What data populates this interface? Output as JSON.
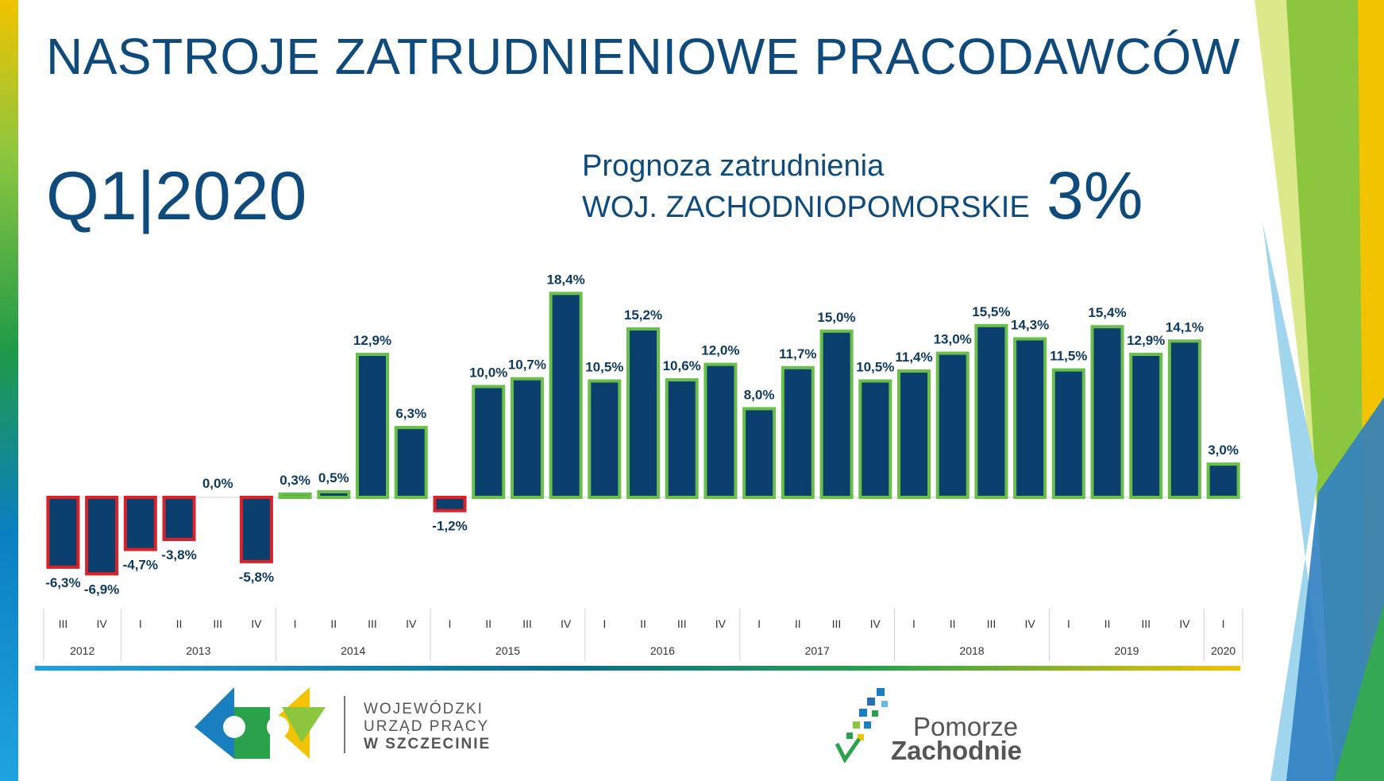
{
  "title": "NASTROJE ZATRUDNIENIOWE PRACODAWCÓW",
  "period": "Q1|2020",
  "forecast": {
    "label": "Prognoza zatrudnienia",
    "region": "WOJ. ZACHODNIOPOMORSKIE",
    "value": "3%"
  },
  "chart_data": {
    "type": "bar",
    "categories": [
      "III",
      "IV",
      "I",
      "II",
      "III",
      "IV",
      "I",
      "II",
      "III",
      "IV",
      "I",
      "II",
      "III",
      "IV",
      "I",
      "II",
      "III",
      "IV",
      "I",
      "II",
      "III",
      "IV",
      "I",
      "II",
      "III",
      "IV",
      "I",
      "II",
      "III",
      "IV",
      "I"
    ],
    "values": [
      -6.3,
      -6.9,
      -4.7,
      -3.8,
      0.0,
      -5.8,
      0.3,
      0.5,
      12.9,
      6.3,
      -1.2,
      10.0,
      10.7,
      18.4,
      10.5,
      15.2,
      10.6,
      12.0,
      8.0,
      11.7,
      15.0,
      10.5,
      11.4,
      13.0,
      15.5,
      14.3,
      11.5,
      15.4,
      12.9,
      14.1,
      3.0
    ],
    "value_labels": [
      "-6,3%",
      "-6,9%",
      "-4,7%",
      "-3,8%",
      "0,0%",
      "-5,8%",
      "0,3%",
      "0,5%",
      "12,9%",
      "6,3%",
      "-1,2%",
      "10,0%",
      "10,7%",
      "18,4%",
      "10,5%",
      "15,2%",
      "10,6%",
      "12,0%",
      "8,0%",
      "11,7%",
      "15,0%",
      "10,5%",
      "11,4%",
      "13,0%",
      "15,5%",
      "14,3%",
      "11,5%",
      "15,4%",
      "12,9%",
      "14,1%",
      "3,0%"
    ],
    "year_groups": [
      {
        "year": "2012",
        "count": 2
      },
      {
        "year": "2013",
        "count": 4
      },
      {
        "year": "2014",
        "count": 4
      },
      {
        "year": "2015",
        "count": 4
      },
      {
        "year": "2016",
        "count": 4
      },
      {
        "year": "2017",
        "count": 4
      },
      {
        "year": "2018",
        "count": 4
      },
      {
        "year": "2019",
        "count": 4
      },
      {
        "year": "2020",
        "count": 1
      }
    ],
    "colors": {
      "bar_fill": "#0b3f6e",
      "positive_border": "#6abf4b",
      "negative_border": "#d9222a",
      "label": "#0e3a5e"
    }
  },
  "logos": {
    "wup": [
      "WOJEWÓDZKI",
      "URZĄD PRACY",
      "W SZCZECINIE"
    ],
    "pz": [
      "Pomorze",
      "Zachodnie"
    ]
  }
}
